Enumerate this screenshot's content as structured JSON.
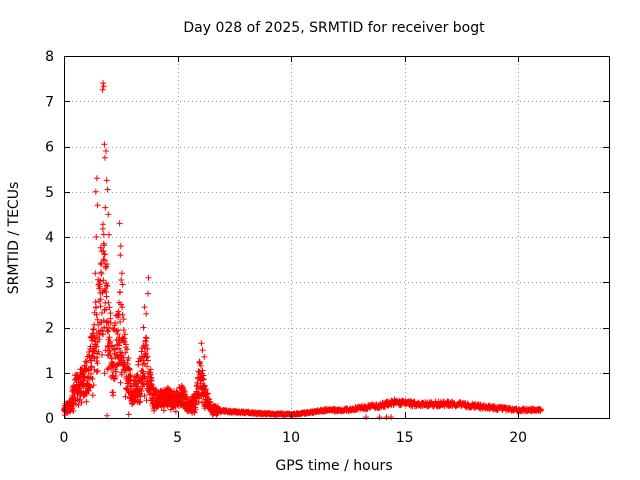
{
  "chart_data": {
    "type": "scatter",
    "title": "Day 028 of 2025, SRMTID for receiver bogt",
    "xlabel": "GPS time / hours",
    "ylabel": "SRMTID / TECUs",
    "xlim": [
      0,
      24
    ],
    "ylim": [
      0,
      8
    ],
    "xticks": [
      0,
      5,
      10,
      15,
      20
    ],
    "yticks": [
      0,
      1,
      2,
      3,
      4,
      5,
      6,
      7,
      8
    ],
    "grid": true,
    "marker": "+",
    "color": "#ff0000",
    "x_range_observed": [
      0.0,
      21.0
    ],
    "envelope": [
      [
        0.0,
        0.2
      ],
      [
        0.3,
        0.3
      ],
      [
        0.5,
        0.7
      ],
      [
        0.8,
        0.8
      ],
      [
        1.0,
        0.9
      ],
      [
        1.3,
        1.5
      ],
      [
        1.5,
        2.2
      ],
      [
        1.7,
        3.0
      ],
      [
        1.9,
        2.5
      ],
      [
        2.1,
        1.4
      ],
      [
        2.3,
        1.6
      ],
      [
        2.5,
        2.1
      ],
      [
        2.7,
        1.2
      ],
      [
        3.0,
        0.5
      ],
      [
        3.3,
        0.9
      ],
      [
        3.6,
        1.3
      ],
      [
        3.9,
        0.5
      ],
      [
        4.2,
        0.4
      ],
      [
        4.5,
        0.5
      ],
      [
        4.8,
        0.4
      ],
      [
        5.2,
        0.5
      ],
      [
        5.5,
        0.25
      ],
      [
        5.8,
        0.4
      ],
      [
        6.0,
        1.0
      ],
      [
        6.2,
        0.5
      ],
      [
        6.5,
        0.2
      ],
      [
        7.0,
        0.15
      ],
      [
        8.0,
        0.12
      ],
      [
        9.0,
        0.09
      ],
      [
        10.0,
        0.08
      ],
      [
        10.8,
        0.12
      ],
      [
        11.5,
        0.17
      ],
      [
        12.5,
        0.18
      ],
      [
        13.0,
        0.22
      ],
      [
        14.0,
        0.28
      ],
      [
        14.5,
        0.35
      ],
      [
        15.0,
        0.32
      ],
      [
        16.0,
        0.3
      ],
      [
        17.0,
        0.32
      ],
      [
        18.0,
        0.27
      ],
      [
        19.0,
        0.22
      ],
      [
        20.0,
        0.18
      ],
      [
        21.0,
        0.18
      ]
    ],
    "peaks": [
      {
        "x": 1.72,
        "y": 7.4
      },
      {
        "x": 1.7,
        "y": 7.25
      },
      {
        "x": 1.75,
        "y": 7.33
      },
      {
        "x": 1.78,
        "y": 6.05
      },
      {
        "x": 1.85,
        "y": 5.9
      },
      {
        "x": 1.8,
        "y": 5.75
      },
      {
        "x": 1.45,
        "y": 5.3
      },
      {
        "x": 1.4,
        "y": 5.0
      },
      {
        "x": 1.48,
        "y": 4.7
      },
      {
        "x": 1.88,
        "y": 5.25
      },
      {
        "x": 1.92,
        "y": 5.05
      },
      {
        "x": 1.95,
        "y": 4.5
      },
      {
        "x": 1.82,
        "y": 4.65
      },
      {
        "x": 1.98,
        "y": 4.05
      },
      {
        "x": 1.75,
        "y": 3.85
      },
      {
        "x": 1.42,
        "y": 4.0
      },
      {
        "x": 1.38,
        "y": 3.2
      },
      {
        "x": 2.45,
        "y": 4.3
      },
      {
        "x": 2.5,
        "y": 3.8
      },
      {
        "x": 2.48,
        "y": 3.6
      },
      {
        "x": 2.55,
        "y": 3.2
      },
      {
        "x": 2.52,
        "y": 3.05
      },
      {
        "x": 2.58,
        "y": 2.95
      },
      {
        "x": 1.62,
        "y": 3.4
      },
      {
        "x": 1.8,
        "y": 2.85
      },
      {
        "x": 1.85,
        "y": 2.4
      },
      {
        "x": 2.42,
        "y": 2.55
      },
      {
        "x": 3.72,
        "y": 3.1
      },
      {
        "x": 3.7,
        "y": 2.75
      },
      {
        "x": 3.55,
        "y": 2.45
      },
      {
        "x": 3.62,
        "y": 2.3
      },
      {
        "x": 3.5,
        "y": 2.0
      },
      {
        "x": 6.05,
        "y": 1.65
      },
      {
        "x": 6.1,
        "y": 1.5
      },
      {
        "x": 6.18,
        "y": 1.35
      },
      {
        "x": 1.9,
        "y": 0.05
      },
      {
        "x": 2.85,
        "y": 0.08
      },
      {
        "x": 13.3,
        "y": 0.02
      },
      {
        "x": 13.9,
        "y": 0.02
      },
      {
        "x": 14.2,
        "y": 0.02
      },
      {
        "x": 14.4,
        "y": 0.02
      }
    ]
  }
}
